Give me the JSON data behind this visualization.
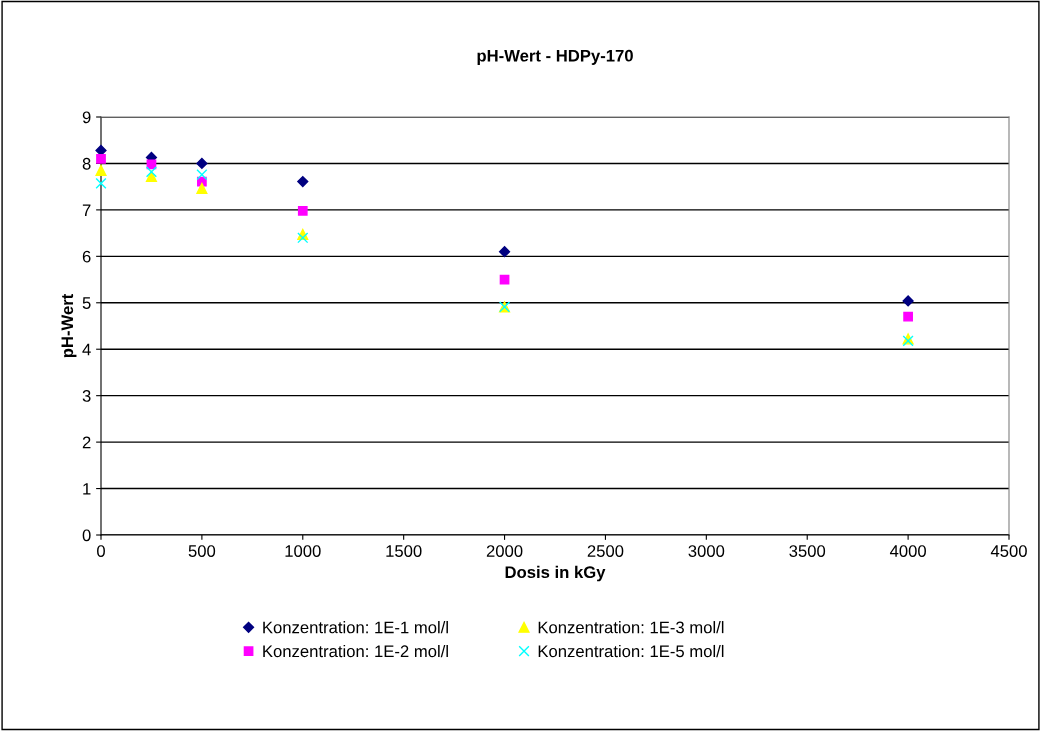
{
  "chart_data": {
    "type": "scatter",
    "title": "pH-Wert - HDPy-170",
    "xlabel": "Dosis in kGy",
    "ylabel": "pH-Wert",
    "x": [
      0,
      250,
      500,
      1000,
      2000,
      4000
    ],
    "series": [
      {
        "name": "Konzentration: 1E-1 mol/l",
        "color": "#000080",
        "marker": "diamond",
        "values": [
          8.28,
          8.13,
          8.0,
          7.61,
          6.1,
          5.04
        ]
      },
      {
        "name": "Konzentration: 1E-2 mol/l",
        "color": "#ff00ff",
        "marker": "square",
        "values": [
          8.1,
          7.98,
          7.61,
          6.98,
          5.5,
          4.7
        ]
      },
      {
        "name": "Konzentration: 1E-3 mol/l",
        "color": "#ffff00",
        "marker": "triangle",
        "values": [
          7.85,
          7.72,
          7.46,
          6.47,
          4.91,
          4.22
        ]
      },
      {
        "name": "Konzentration: 1E-5 mol/l",
        "color": "#00ffff",
        "marker": "cross",
        "values": [
          7.57,
          7.82,
          7.76,
          6.4,
          4.91,
          4.18
        ]
      }
    ],
    "xlim": [
      0,
      4500
    ],
    "xticks": [
      0,
      500,
      1000,
      1500,
      2000,
      2500,
      3000,
      3500,
      4000,
      4500
    ],
    "ylim": [
      0,
      9
    ],
    "yticks": [
      0,
      1,
      2,
      3,
      4,
      5,
      6,
      7,
      8,
      9
    ],
    "grid": "y",
    "legend": "bottom"
  }
}
